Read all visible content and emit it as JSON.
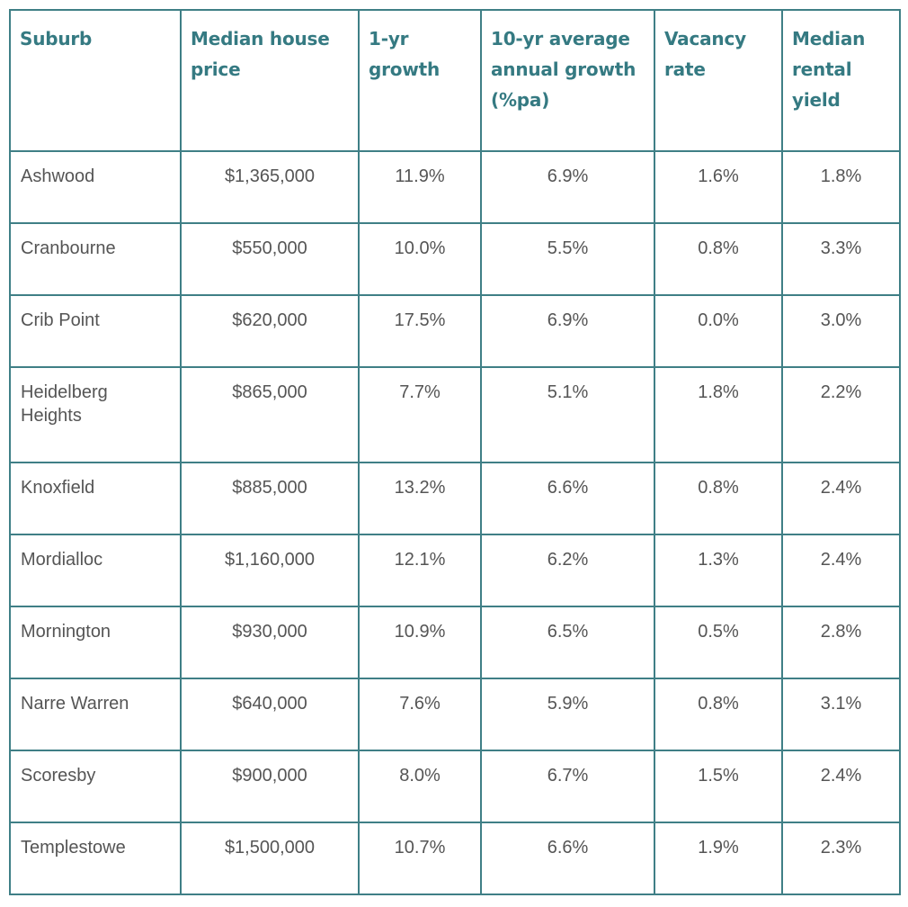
{
  "table": {
    "headers": [
      "Suburb",
      "Median house price",
      "1-yr growth",
      "10-yr average annual growth (%pa)",
      "Vacancy rate",
      "Median rental yield"
    ],
    "rows": [
      [
        "Ashwood",
        "$1,365,000",
        "11.9%",
        "6.9%",
        "1.6%",
        "1.8%"
      ],
      [
        "Cranbourne",
        "$550,000",
        "10.0%",
        "5.5%",
        "0.8%",
        "3.3%"
      ],
      [
        "Crib Point",
        "$620,000",
        "17.5%",
        "6.9%",
        "0.0%",
        "3.0%"
      ],
      [
        "Heidelberg Heights",
        "$865,000",
        "7.7%",
        "5.1%",
        "1.8%",
        "2.2%"
      ],
      [
        "Knoxfield",
        "$885,000",
        "13.2%",
        "6.6%",
        "0.8%",
        "2.4%"
      ],
      [
        "Mordialloc",
        "$1,160,000",
        "12.1%",
        "6.2%",
        "1.3%",
        "2.4%"
      ],
      [
        "Mornington",
        "$930,000",
        "10.9%",
        "6.5%",
        "0.5%",
        "2.8%"
      ],
      [
        "Narre Warren",
        "$640,000",
        "7.6%",
        "5.9%",
        "0.8%",
        "3.1%"
      ],
      [
        "Scoresby",
        "$900,000",
        "8.0%",
        "6.7%",
        "1.5%",
        "2.4%"
      ],
      [
        "Templestowe",
        "$1,500,000",
        "10.7%",
        "6.6%",
        "1.9%",
        "2.3%"
      ]
    ]
  },
  "colors": {
    "border": "#3f7f86",
    "header_text": "#357a82",
    "body_text": "#555555"
  }
}
